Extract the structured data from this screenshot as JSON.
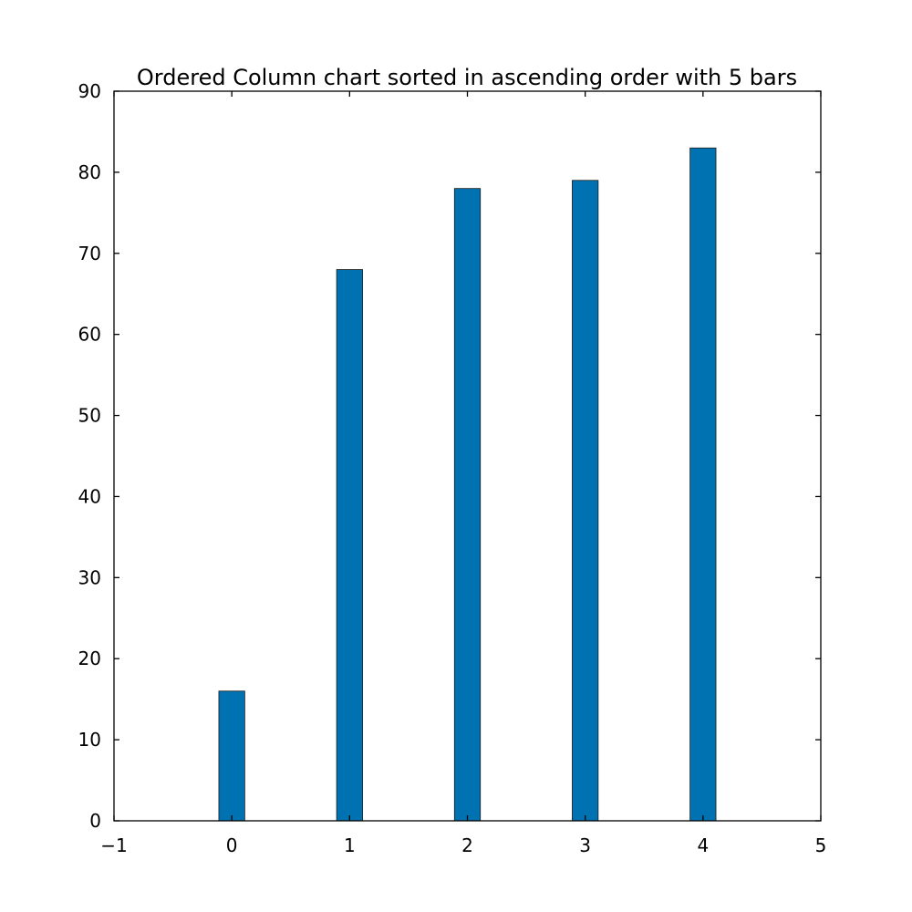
{
  "chart_data": {
    "type": "bar",
    "title": "Ordered Column chart sorted in ascending order with 5 bars",
    "xlabel": "",
    "ylabel": "",
    "x": [
      0,
      1,
      2,
      3,
      4
    ],
    "values": [
      16,
      68,
      78,
      79,
      83
    ],
    "xlim": [
      -1,
      5
    ],
    "ylim": [
      0,
      90
    ],
    "x_ticks": [
      -1,
      0,
      1,
      2,
      3,
      4,
      5
    ],
    "x_tick_labels": [
      "−1",
      "0",
      "1",
      "2",
      "3",
      "4",
      "5"
    ],
    "y_ticks": [
      0,
      10,
      20,
      30,
      40,
      50,
      60,
      70,
      80,
      90
    ],
    "y_tick_labels": [
      "0",
      "10",
      "20",
      "30",
      "40",
      "50",
      "60",
      "70",
      "80",
      "90"
    ],
    "grid": false,
    "bar_color": "#0072b2"
  }
}
